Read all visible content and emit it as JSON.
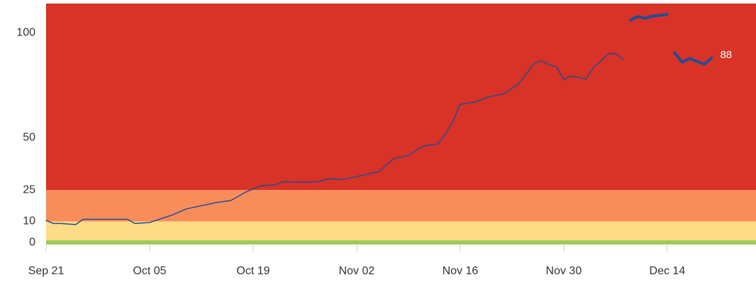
{
  "chart_data": {
    "type": "line",
    "xlim": [
      "Sep 21",
      "Dec 26"
    ],
    "xticks": [
      "Sep 21",
      "Oct 05",
      "Oct 19",
      "Nov 02",
      "Nov 16",
      "Nov 30",
      "Dec 14"
    ],
    "ylim": [
      -1,
      114
    ],
    "yticks": [
      0,
      10,
      25,
      50,
      100
    ],
    "bands": [
      {
        "from": -1,
        "to": 1,
        "color": "#9ccc5a"
      },
      {
        "from": 1,
        "to": 10,
        "color": "#fddc86"
      },
      {
        "from": 10,
        "to": 25,
        "color": "#f98d5a"
      },
      {
        "from": 25,
        "to": 114,
        "color": "#d93226"
      }
    ],
    "series": [
      {
        "color": "#1f4e96",
        "width": 1.5,
        "x": [
          "Sep 21",
          "Sep 22",
          "Sep 23",
          "Sep 25",
          "Sep 26",
          "Sep 29",
          "Oct 02",
          "Oct 03",
          "Oct 05",
          "Oct 08",
          "Oct 10",
          "Oct 12",
          "Oct 14",
          "Oct 16",
          "Oct 18",
          "Oct 20",
          "Oct 22",
          "Oct 23",
          "Oct 26",
          "Oct 28",
          "Oct 29",
          "Oct 31",
          "Nov 02",
          "Nov 04",
          "Nov 05",
          "Nov 07",
          "Nov 09",
          "Nov 11",
          "Nov 13",
          "Nov 14",
          "Nov 15",
          "Nov 16",
          "Nov 18",
          "Nov 20",
          "Nov 22",
          "Nov 24",
          "Nov 26",
          "Nov 27",
          "Nov 28",
          "Nov 29",
          "Nov 30",
          "Dec 01",
          "Dec 03",
          "Dec 04",
          "Dec 06",
          "Dec 07",
          "Dec 08"
        ],
        "values": [
          10.5,
          9,
          9,
          8.5,
          11,
          11,
          11,
          9,
          9.5,
          13,
          16,
          17.5,
          19,
          20,
          24,
          27,
          27.5,
          29,
          28.7,
          29,
          30.4,
          30,
          31.4,
          33,
          33.8,
          40,
          41.5,
          46,
          47,
          51.7,
          57.8,
          65.9,
          67,
          69.6,
          71,
          76,
          85.5,
          86.8,
          84.8,
          83.8,
          77.7,
          79.4,
          78,
          83.4,
          89.9,
          90.2,
          87.5
        ]
      },
      {
        "color": "#1f4e96",
        "width": 4,
        "x": [
          "Dec 09",
          "Dec 10",
          "Dec 11",
          "Dec 12",
          "Dec 14"
        ],
        "values": [
          106,
          107.8,
          107,
          108,
          108.8
        ]
      },
      {
        "color": "#1f4e96",
        "width": 4,
        "x": [
          "Dec 15",
          "Dec 16",
          "Dec 17",
          "Dec 19",
          "Dec 20"
        ],
        "values": [
          90.5,
          86,
          87.8,
          85,
          88
        ],
        "value_labels": [
          null,
          null,
          null,
          null,
          "88"
        ]
      }
    ]
  }
}
